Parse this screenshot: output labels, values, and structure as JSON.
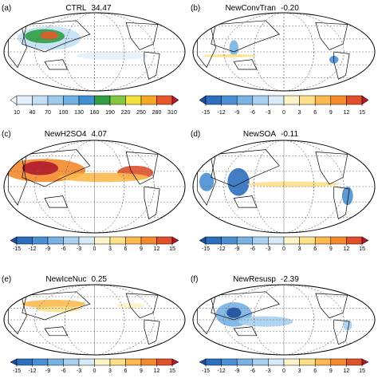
{
  "panels": [
    {
      "label": "(a)",
      "title": "CTRL",
      "value": "34.47",
      "colorbar": {
        "ticks": [
          10,
          40,
          70,
          100,
          130,
          160,
          190,
          220,
          250,
          280,
          310
        ],
        "colors": [
          "#ffffff",
          "#e3f0fb",
          "#c2dff5",
          "#9ccbee",
          "#6fb1e3",
          "#3f8fd2",
          "#2f9e44",
          "#86c540",
          "#f2e33c",
          "#f5a623",
          "#e8562a",
          "#b2182b"
        ]
      }
    },
    {
      "label": "(b)",
      "title": "NewConvTran",
      "value": "-0.20",
      "colorbar": {
        "ticks": [
          -15,
          -12,
          -9,
          -6,
          -3,
          0,
          3,
          6,
          9,
          12,
          15
        ],
        "colors": [
          "#1f4e9c",
          "#2c6fbf",
          "#4a90d4",
          "#79b2e3",
          "#a9d0ef",
          "#d6eaf8",
          "#fdf3c8",
          "#fde08a",
          "#fbb94f",
          "#f48a2e",
          "#e0502a",
          "#b2182b"
        ]
      }
    },
    {
      "label": "(c)",
      "title": "NewH2SO4",
      "value": "4.07",
      "colorbar": {
        "ticks": [
          -15,
          -12,
          -9,
          -6,
          -3,
          0,
          3,
          6,
          9,
          12,
          15
        ],
        "colors": [
          "#1f4e9c",
          "#2c6fbf",
          "#4a90d4",
          "#79b2e3",
          "#a9d0ef",
          "#d6eaf8",
          "#fdf3c8",
          "#fde08a",
          "#fbb94f",
          "#f48a2e",
          "#e0502a",
          "#b2182b"
        ]
      }
    },
    {
      "label": "(d)",
      "title": "NewSOA",
      "value": "-0.11",
      "colorbar": {
        "ticks": [
          -15,
          -12,
          -9,
          -6,
          -3,
          0,
          3,
          6,
          9,
          12,
          15
        ],
        "colors": [
          "#1f4e9c",
          "#2c6fbf",
          "#4a90d4",
          "#79b2e3",
          "#a9d0ef",
          "#d6eaf8",
          "#fdf3c8",
          "#fde08a",
          "#fbb94f",
          "#f48a2e",
          "#e0502a",
          "#b2182b"
        ]
      }
    },
    {
      "label": "(e)",
      "title": "NewIceNuc",
      "value": "0.25",
      "colorbar": {
        "ticks": [
          -15,
          -12,
          -9,
          -6,
          -3,
          0,
          3,
          6,
          9,
          12,
          15
        ],
        "colors": [
          "#1f4e9c",
          "#2c6fbf",
          "#4a90d4",
          "#79b2e3",
          "#a9d0ef",
          "#d6eaf8",
          "#fdf3c8",
          "#fde08a",
          "#fbb94f",
          "#f48a2e",
          "#e0502a",
          "#b2182b"
        ]
      }
    },
    {
      "label": "(f)",
      "title": "NewResusp",
      "value": "-2.39",
      "colorbar": {
        "ticks": [
          -15,
          -12,
          -9,
          -6,
          -3,
          0,
          3,
          6,
          9,
          12,
          15
        ],
        "colors": [
          "#1f4e9c",
          "#2c6fbf",
          "#4a90d4",
          "#79b2e3",
          "#a9d0ef",
          "#d6eaf8",
          "#fdf3c8",
          "#fde08a",
          "#fbb94f",
          "#f48a2e",
          "#e0502a",
          "#b2182b"
        ]
      }
    }
  ]
}
